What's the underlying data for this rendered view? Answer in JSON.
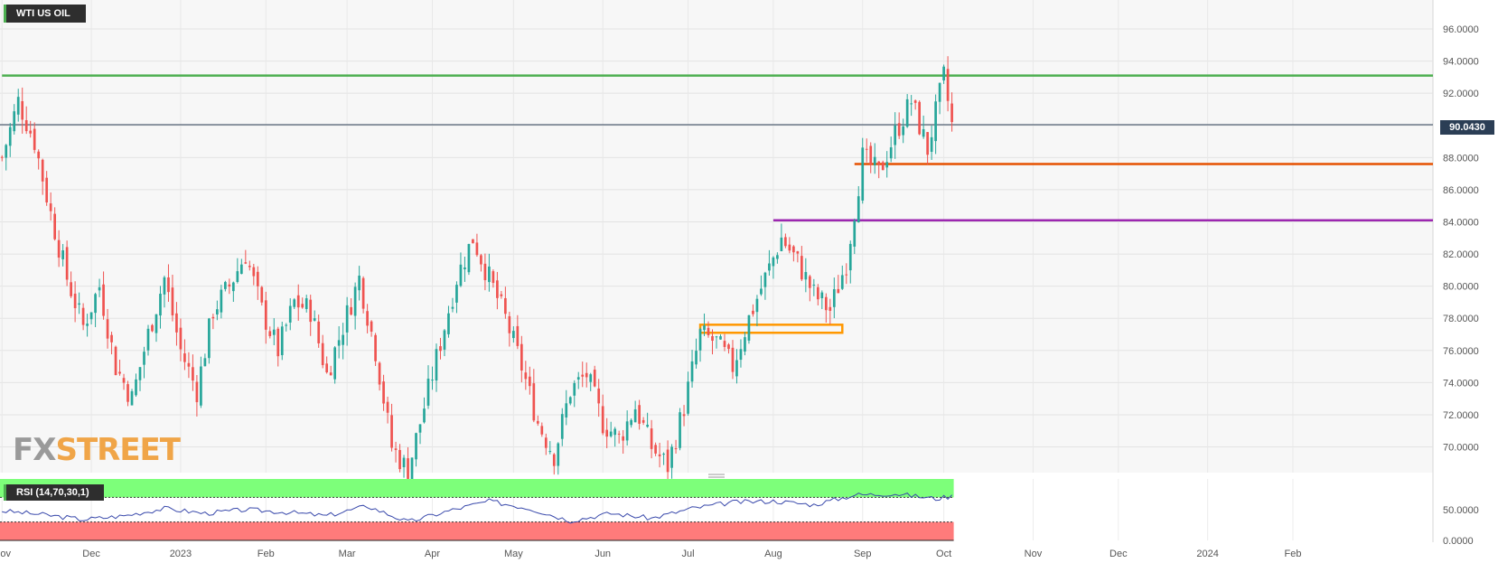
{
  "symbol": "WTI US OIL",
  "indicator_label": "RSI (14,70,30,1)",
  "current_price_label": "90.0430",
  "logo": {
    "fx": "FX",
    "street": "STREET"
  },
  "colors": {
    "bull": "#26a69a",
    "bear": "#ef5350",
    "resistance": "#4caf50",
    "support_orange": "#e65100",
    "support_purple": "#9c27b0",
    "zone": "#ff9800",
    "price_line": "#2b3e55",
    "rsi_line": "#3949ab",
    "rsi_overbought": "#7dff7a",
    "rsi_oversold": "#ff7b7b"
  },
  "chart_data": {
    "type": "candlestick",
    "title": "WTI US OIL",
    "y_axis": {
      "ticks": [
        "96.0000",
        "94.0000",
        "92.0000",
        "90.0000",
        "88.0000",
        "86.0000",
        "84.0000",
        "82.0000",
        "80.0000",
        "78.0000",
        "76.0000",
        "74.0000",
        "72.0000",
        "70.0000"
      ],
      "range": [
        68.4,
        97.8
      ]
    },
    "x_axis": {
      "ticks": [
        "Nov",
        "Dec",
        "2023",
        "Feb",
        "Mar",
        "Apr",
        "May",
        "Jun",
        "Jul",
        "Aug",
        "Sep",
        "Oct",
        "Nov",
        "Dec",
        "2024",
        "Feb"
      ]
    },
    "current_price": 90.043,
    "horizontal_levels": [
      {
        "price": 93.1,
        "color": "green"
      },
      {
        "price": 87.6,
        "color": "orange"
      },
      {
        "price": 84.1,
        "color": "purple"
      }
    ],
    "zone": {
      "from": 77.1,
      "to": 77.6
    },
    "close_path": [
      [
        0,
        88.0
      ],
      [
        4,
        91.5
      ],
      [
        8,
        89.0
      ],
      [
        12,
        84.5
      ],
      [
        16,
        80.5
      ],
      [
        20,
        77.5
      ],
      [
        24,
        80.0
      ],
      [
        28,
        75.0
      ],
      [
        32,
        73.0
      ],
      [
        36,
        77.0
      ],
      [
        40,
        80.5
      ],
      [
        44,
        76.0
      ],
      [
        48,
        73.5
      ],
      [
        52,
        78.5
      ],
      [
        56,
        80.0
      ],
      [
        60,
        82.0
      ],
      [
        64,
        78.5
      ],
      [
        68,
        76.0
      ],
      [
        72,
        79.0
      ],
      [
        76,
        78.5
      ],
      [
        80,
        74.5
      ],
      [
        84,
        77.5
      ],
      [
        88,
        80.5
      ],
      [
        92,
        76.0
      ],
      [
        96,
        70.0
      ],
      [
        100,
        68.5
      ],
      [
        104,
        72.5
      ],
      [
        108,
        76.5
      ],
      [
        112,
        80.5
      ],
      [
        116,
        83.0
      ],
      [
        120,
        80.5
      ],
      [
        124,
        78.0
      ],
      [
        128,
        75.0
      ],
      [
        132,
        71.5
      ],
      [
        136,
        69.5
      ],
      [
        140,
        73.5
      ],
      [
        144,
        74.5
      ],
      [
        148,
        71.5
      ],
      [
        152,
        70.5
      ],
      [
        156,
        72.5
      ],
      [
        160,
        70.0
      ],
      [
        164,
        68.8
      ],
      [
        168,
        72.5
      ],
      [
        172,
        77.0
      ],
      [
        176,
        76.5
      ],
      [
        180,
        75.0
      ],
      [
        184,
        78.0
      ],
      [
        188,
        80.5
      ],
      [
        192,
        83.0
      ],
      [
        196,
        81.5
      ],
      [
        200,
        79.5
      ],
      [
        204,
        78.5
      ],
      [
        208,
        81.5
      ],
      [
        212,
        88.0
      ],
      [
        216,
        87.0
      ],
      [
        220,
        89.5
      ],
      [
        224,
        91.5
      ],
      [
        228,
        88.5
      ],
      [
        232,
        93.0
      ],
      [
        234,
        90.0
      ]
    ],
    "total_slots": 353,
    "data_slots": 235,
    "rsi": {
      "y_axis": {
        "ticks": [
          "50.0000",
          "0.0000"
        ],
        "range": [
          0,
          100
        ]
      },
      "overbought": 70,
      "oversold": 30,
      "path": [
        [
          0,
          48
        ],
        [
          10,
          42
        ],
        [
          20,
          34
        ],
        [
          30,
          40
        ],
        [
          40,
          52
        ],
        [
          50,
          44
        ],
        [
          60,
          50
        ],
        [
          70,
          46
        ],
        [
          80,
          40
        ],
        [
          90,
          56
        ],
        [
          100,
          30
        ],
        [
          110,
          48
        ],
        [
          120,
          64
        ],
        [
          130,
          52
        ],
        [
          140,
          32
        ],
        [
          150,
          44
        ],
        [
          160,
          36
        ],
        [
          170,
          52
        ],
        [
          180,
          62
        ],
        [
          190,
          64
        ],
        [
          200,
          58
        ],
        [
          210,
          74
        ],
        [
          220,
          76
        ],
        [
          230,
          68
        ],
        [
          234,
          72
        ]
      ]
    }
  }
}
